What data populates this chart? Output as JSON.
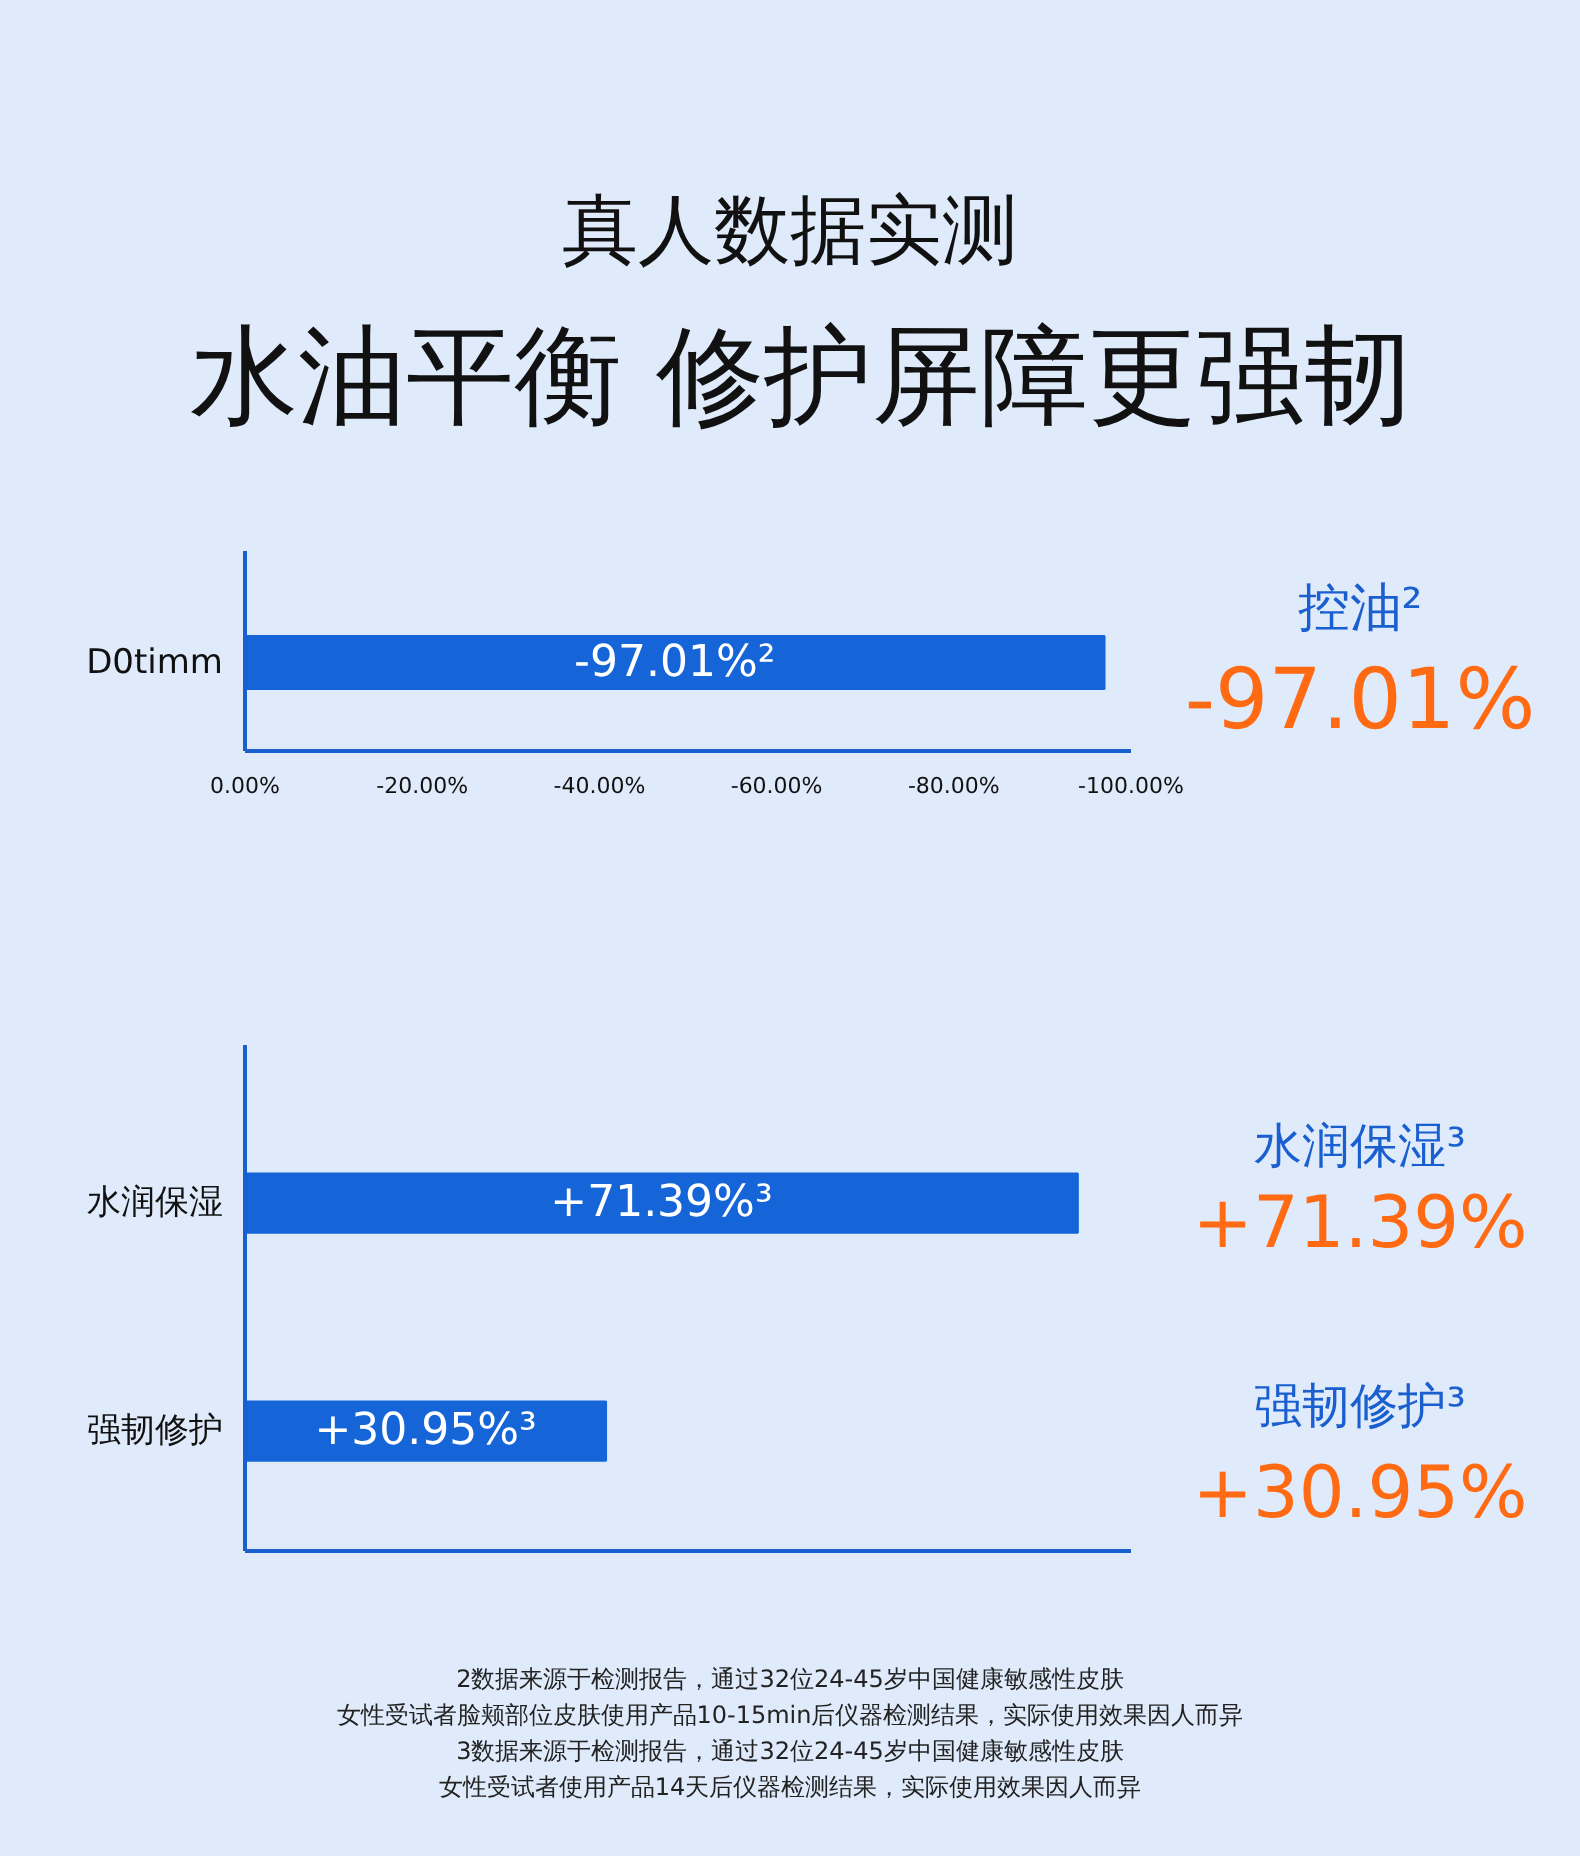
{
  "chart_data": [
    {
      "type": "bar",
      "orientation": "horizontal",
      "title": "真人数据实测",
      "subtitle": "水油平衡 修护屏障更强韧",
      "categories": [
        "D0timm"
      ],
      "series": [
        {
          "color": "#1565d8",
          "values": [
            -97.01
          ],
          "value_labels": [
            "-97.01%²"
          ]
        }
      ],
      "xlim": [
        0,
        -100
      ],
      "xticks": [
        {
          "value": 0,
          "label": "0.00%"
        },
        {
          "value": -20,
          "label": "-20.00%"
        },
        {
          "value": -40,
          "label": "-40.00%"
        },
        {
          "value": -60,
          "label": "-60.00%"
        },
        {
          "value": -80,
          "label": "-80.00%"
        },
        {
          "value": -100,
          "label": "-100.00%"
        }
      ],
      "grid": false,
      "annotations": [
        "控油²",
        "-97.01%"
      ]
    },
    {
      "type": "bar",
      "orientation": "horizontal",
      "categories": [
        "水润保湿",
        "强韧修护"
      ],
      "series": [
        {
          "color": "#1565d8",
          "values": [
            71.39,
            30.95
          ],
          "value_labels": [
            "+71.39%³",
            "+30.95%³"
          ]
        }
      ],
      "tick_labels": "y",
      "grid": false,
      "annotations": [
        "水润保湿³",
        "+71.39%",
        "强韧修护³",
        "+30.95%",
        "2数据来源于检测报告，通过32位24-45岁中国健康敏感性皮肤",
        "女性受试者脸颊部位皮肤使用产品10-15min后仪器检测结果，实际使用效果因人而异",
        "3数据来源于检测报告，通过32位24-45岁中国健康敏感性皮肤",
        "女性受试者使用产品14天后仪器检测结果，实际使用效果因人而异"
      ]
    }
  ]
}
